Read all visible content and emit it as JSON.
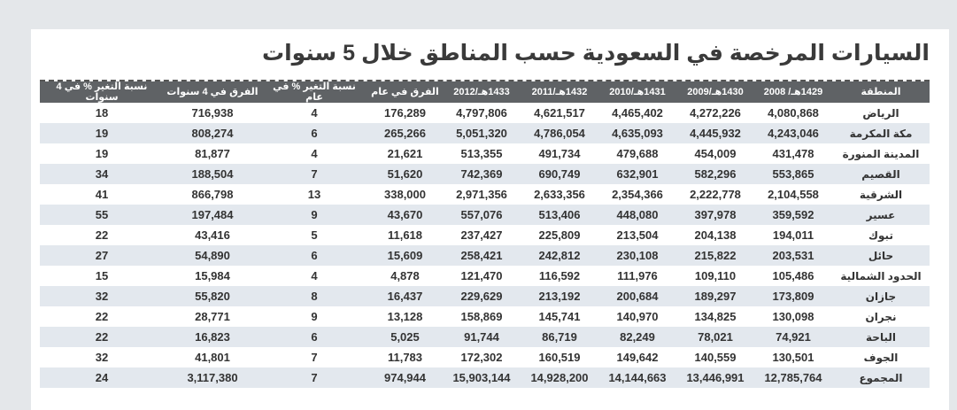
{
  "title": "السيارات المرخصة في السعودية حسب المناطق خلال 5 سنوات",
  "columns": [
    "المنطقة",
    "1429هـ/ 2008",
    "1430هـ/2009",
    "1431هـ/2010",
    "1432هـ/2011",
    "1433هـ/2012",
    "الفرق في عام",
    "نسبة التغير % في عام",
    "الفرق في 4 سنوات",
    "نسبة التغير % في 4 سنوات"
  ],
  "rows": [
    [
      "الرياض",
      "4,080,868",
      "4,272,226",
      "4,465,402",
      "4,621,517",
      "4,797,806",
      "176,289",
      "4",
      "716,938",
      "18"
    ],
    [
      "مكة المكرمة",
      "4,243,046",
      "4,445,932",
      "4,635,093",
      "4,786,054",
      "5,051,320",
      "265,266",
      "6",
      "808,274",
      "19"
    ],
    [
      "المدينة المنورة",
      "431,478",
      "454,009",
      "479,688",
      "491,734",
      "513,355",
      "21,621",
      "4",
      "81,877",
      "19"
    ],
    [
      "القصيم",
      "553,865",
      "582,296",
      "632,901",
      "690,749",
      "742,369",
      "51,620",
      "7",
      "188,504",
      "34"
    ],
    [
      "الشرقية",
      "2,104,558",
      "2,222,778",
      "2,354,366",
      "2,633,356",
      "2,971,356",
      "338,000",
      "13",
      "866,798",
      "41"
    ],
    [
      "عسير",
      "359,592",
      "397,978",
      "448,080",
      "513,406",
      "557,076",
      "43,670",
      "9",
      "197,484",
      "55"
    ],
    [
      "تبوك",
      "194,011",
      "204,138",
      "213,504",
      "225,809",
      "237,427",
      "11,618",
      "5",
      "43,416",
      "22"
    ],
    [
      "حائل",
      "203,531",
      "215,822",
      "230,108",
      "242,812",
      "258,421",
      "15,609",
      "6",
      "54,890",
      "27"
    ],
    [
      "الحدود الشمالية",
      "105,486",
      "109,110",
      "111,976",
      "116,592",
      "121,470",
      "4,878",
      "4",
      "15,984",
      "15"
    ],
    [
      "جازان",
      "173,809",
      "189,297",
      "200,684",
      "213,192",
      "229,629",
      "16,437",
      "8",
      "55,820",
      "32"
    ],
    [
      "نجران",
      "130,098",
      "134,825",
      "140,970",
      "145,741",
      "158,869",
      "13,128",
      "9",
      "28,771",
      "22"
    ],
    [
      "الباحة",
      "74,921",
      "78,021",
      "82,249",
      "86,719",
      "91,744",
      "5,025",
      "6",
      "16,823",
      "22"
    ],
    [
      "الجوف",
      "130,501",
      "140,559",
      "149,642",
      "160,519",
      "172,302",
      "11,783",
      "7",
      "41,801",
      "32"
    ],
    [
      "المجموع",
      "12,785,764",
      "13,446,991",
      "14,144,663",
      "14,928,200",
      "15,903,144",
      "974,944",
      "7",
      "3,117,380",
      "24"
    ]
  ]
}
